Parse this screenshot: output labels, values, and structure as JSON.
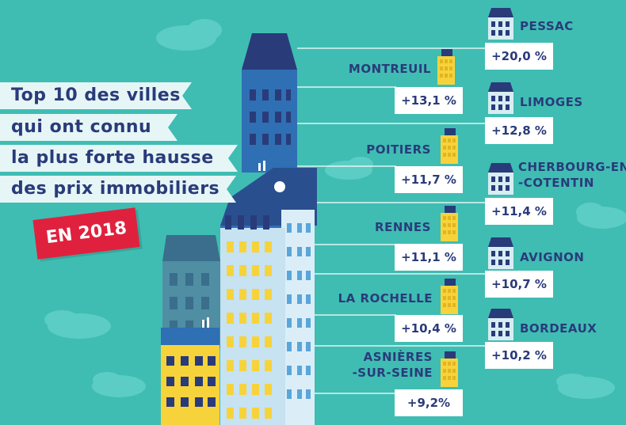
{
  "title_lines": [
    "Top 10 des villes",
    "qui ont connu",
    "la plus forte hausse",
    "des prix immobiliers"
  ],
  "badge": "EN 2018",
  "cities": [
    {
      "name": "PESSAC",
      "value": "+20,0 %"
    },
    {
      "name": "MONTREUIL",
      "value": "+13,1 %"
    },
    {
      "name": "LIMOGES",
      "value": "+12,8 %"
    },
    {
      "name": "POITIERS",
      "value": "+11,7 %"
    },
    {
      "name": "CHERBOURG-EN",
      "name2": "-COTENTIN",
      "value": "+11,4 %"
    },
    {
      "name": "RENNES",
      "value": "+11,1 %"
    },
    {
      "name": "AVIGNON",
      "value": "+10,7 %"
    },
    {
      "name": "LA ROCHELLE",
      "value": "+10,4 %"
    },
    {
      "name": "BORDEAUX",
      "value": "+10,2 %"
    },
    {
      "name": "ASNIÈRES",
      "name2": "-SUR-SEINE",
      "value": "+9,2%"
    }
  ],
  "colors": {
    "background": "#3fbdb3",
    "navy": "#2a3b7a",
    "tower_blue": "#2f6fb3",
    "yellow": "#f7d33b",
    "red": "#e0213e"
  }
}
